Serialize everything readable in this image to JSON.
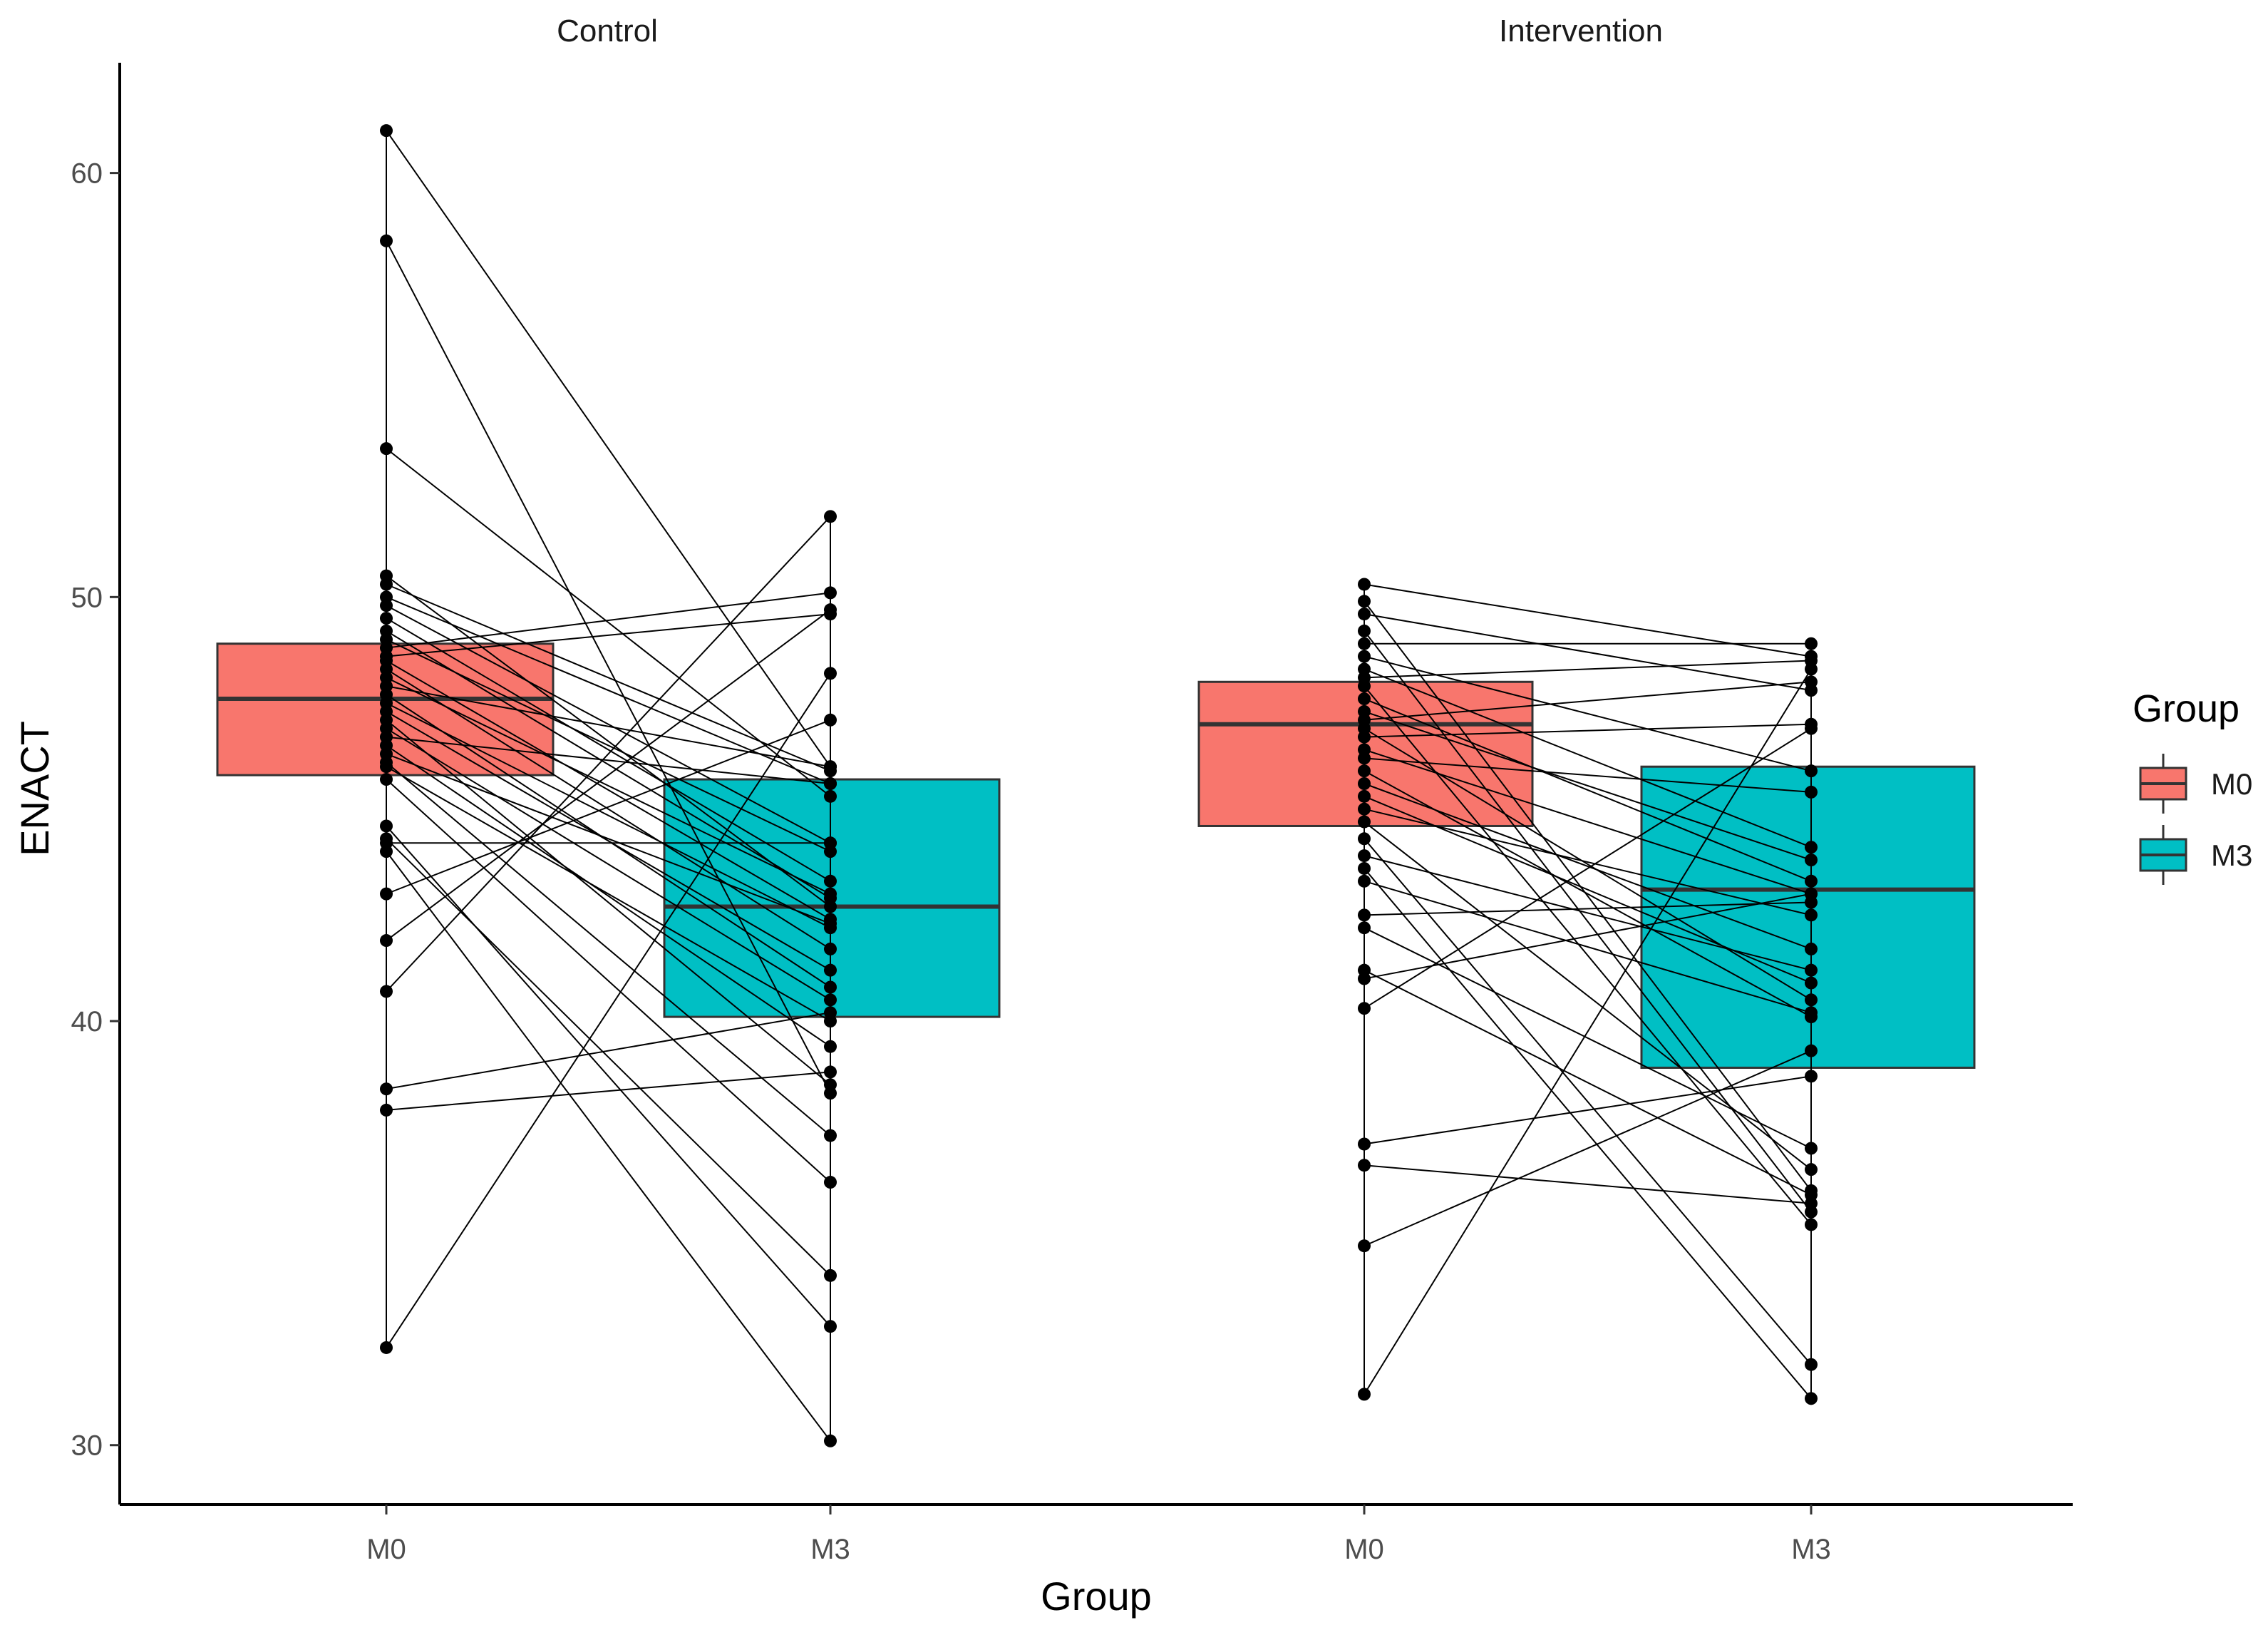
{
  "chart_data": {
    "type": "box",
    "xlabel": "Group",
    "ylabel": "ENACT",
    "ylim": [
      28.6,
      62.6
    ],
    "yticks": [
      30,
      40,
      50,
      60
    ],
    "categories": [
      "M0",
      "M3"
    ],
    "legend": {
      "title": "Group",
      "position": "right",
      "entries": [
        "M0",
        "M3"
      ]
    },
    "colors": {
      "M0": "#F8766D",
      "M3": "#00BFC4"
    },
    "panels": [
      {
        "label": "Control",
        "boxes": [
          {
            "group": "M0",
            "q1": 45.8,
            "median": 47.6,
            "q3": 48.9
          },
          {
            "group": "M3",
            "q1": 40.1,
            "median": 42.7,
            "q3": 45.7
          }
        ],
        "pairs": [
          [
            61.0,
            46.0
          ],
          [
            58.4,
            38.3
          ],
          [
            53.5,
            45.3
          ],
          [
            50.5,
            42.7
          ],
          [
            50.3,
            45.9
          ],
          [
            50.0,
            45.6
          ],
          [
            49.8,
            44.2
          ],
          [
            49.5,
            43.3
          ],
          [
            49.2,
            42.9
          ],
          [
            49.0,
            44.0
          ],
          [
            48.8,
            50.1
          ],
          [
            48.6,
            49.6
          ],
          [
            48.5,
            42.4
          ],
          [
            48.3,
            41.7
          ],
          [
            48.1,
            43.0
          ],
          [
            47.9,
            46.0
          ],
          [
            47.7,
            40.8
          ],
          [
            47.5,
            42.2
          ],
          [
            47.3,
            41.2
          ],
          [
            47.1,
            38.5
          ],
          [
            46.9,
            40.5
          ],
          [
            46.7,
            45.6
          ],
          [
            46.5,
            39.4
          ],
          [
            46.3,
            42.3
          ],
          [
            46.1,
            37.3
          ],
          [
            46.0,
            40.0
          ],
          [
            45.7,
            36.2
          ],
          [
            44.6,
            32.8
          ],
          [
            44.3,
            34.0
          ],
          [
            44.2,
            44.2
          ],
          [
            44.0,
            30.1
          ],
          [
            43.0,
            47.1
          ],
          [
            41.9,
            49.7
          ],
          [
            40.7,
            51.9
          ],
          [
            38.4,
            40.2
          ],
          [
            37.9,
            38.8
          ],
          [
            32.3,
            48.2
          ]
        ]
      },
      {
        "label": "Intervention",
        "boxes": [
          {
            "group": "M0",
            "q1": 44.6,
            "median": 47.0,
            "q3": 48.0
          },
          {
            "group": "M3",
            "q1": 38.9,
            "median": 43.1,
            "q3": 46.0
          }
        ],
        "pairs": [
          [
            50.3,
            48.6
          ],
          [
            49.9,
            36.0
          ],
          [
            49.6,
            47.8
          ],
          [
            49.2,
            35.5
          ],
          [
            48.9,
            48.9
          ],
          [
            48.6,
            45.9
          ],
          [
            48.3,
            44.1
          ],
          [
            48.1,
            48.5
          ],
          [
            47.9,
            35.2
          ],
          [
            47.6,
            43.3
          ],
          [
            47.3,
            43.8
          ],
          [
            47.1,
            48.0
          ],
          [
            46.9,
            40.5
          ],
          [
            46.7,
            47.0
          ],
          [
            46.4,
            43.0
          ],
          [
            46.2,
            45.4
          ],
          [
            45.9,
            40.1
          ],
          [
            45.6,
            41.7
          ],
          [
            45.3,
            40.9
          ],
          [
            45.0,
            42.5
          ],
          [
            44.7,
            36.5
          ],
          [
            44.3,
            31.9
          ],
          [
            43.9,
            41.2
          ],
          [
            43.6,
            31.1
          ],
          [
            43.3,
            40.2
          ],
          [
            42.5,
            42.8
          ],
          [
            42.2,
            37.0
          ],
          [
            41.2,
            35.9
          ],
          [
            41.0,
            43.0
          ],
          [
            40.3,
            46.9
          ],
          [
            37.1,
            38.7
          ],
          [
            36.6,
            35.7
          ],
          [
            34.7,
            39.3
          ],
          [
            31.2,
            48.3
          ]
        ]
      }
    ]
  }
}
